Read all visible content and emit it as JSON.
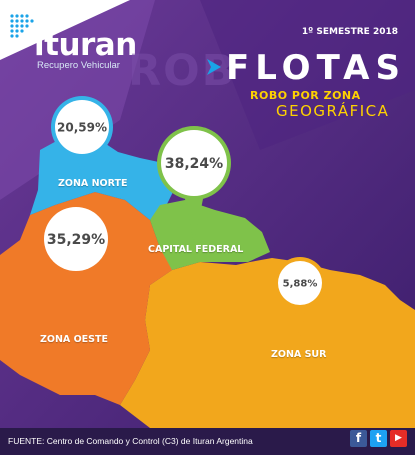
{
  "brand": {
    "name": "ituran",
    "tagline": "Recupero Vehicular",
    "logo_color": "#1aa3e8"
  },
  "header": {
    "period": "1º SEMESTRE 2018",
    "ghost_text": "ROB",
    "title": "FLOTAS",
    "subtitle_line1": "ROBO POR ZONA",
    "subtitle_line2": "GEOGRÁFICA",
    "accent_color": "#ffd200"
  },
  "chart_data": {
    "type": "map",
    "title": "FLOTAS",
    "subtitle": "ROBO POR ZONA GEOGRÁFICA",
    "unit": "%",
    "series": [
      {
        "zone": "ZONA NORTE",
        "value": 20.59,
        "label": "20,59%",
        "color": "#35b3e8"
      },
      {
        "zone": "CAPITAL FEDERAL",
        "value": 38.24,
        "label": "38,24%",
        "color": "#7fc24a"
      },
      {
        "zone": "ZONA OESTE",
        "value": 35.29,
        "label": "35,29%",
        "color": "#f07a28"
      },
      {
        "zone": "ZONA SUR",
        "value": 5.88,
        "label": "5,88%",
        "color": "#f2a71c"
      }
    ]
  },
  "footer": {
    "source": "FUENTE: Centro de Comando y Control (C3) de Ituran Argentina",
    "social": [
      {
        "icon": "facebook-icon",
        "glyph": "f",
        "color": "#3b5998"
      },
      {
        "icon": "twitter-icon",
        "glyph": "t",
        "color": "#1da1f2"
      },
      {
        "icon": "youtube-icon",
        "glyph": "▶",
        "color": "#e52d27"
      }
    ]
  }
}
